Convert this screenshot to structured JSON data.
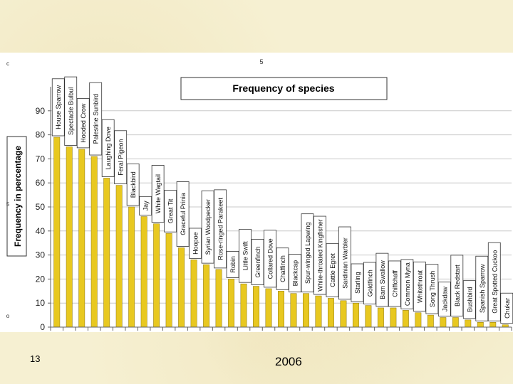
{
  "slide": {
    "number": "13",
    "year": "2006"
  },
  "colors": {
    "bar_fill": "#e8c820",
    "bar_stroke": "#8a7410",
    "gridline": "#c8c8c8",
    "axis": "#606060",
    "panel": "#ffffff"
  },
  "chart_data": {
    "type": "bar",
    "title": "Frequency of species",
    "xlabel": "",
    "ylabel": "Frequency in percentage",
    "ylim": [
      0,
      100
    ],
    "yticks": [
      0,
      10,
      20,
      30,
      40,
      50,
      60,
      70,
      80,
      90
    ],
    "grid": true,
    "categories": [
      "House Sparrow",
      "Spectacle Bulbul",
      "Hooded Crow",
      "Palestine Sunbird",
      "Laughing Dove",
      "Feral Pigeon",
      "Blackbird",
      "Jay",
      "White Wagtail",
      "Great Tit",
      "Graceful Prinia",
      "Hoopoe",
      "Syrian Woodpecker",
      "Rose-ringed Parakeet",
      "Robin",
      "Little Swift",
      "Greenfinch",
      "Collared Dove",
      "Chaffinch",
      "Blackcap",
      "Spur-winged Lapwing",
      "White-throated Kingfisher",
      "Cattle Egret",
      "Sardinian Warbler",
      "Starling",
      "Goldfinch",
      "Barn Swallow",
      "Chiffchaff",
      "Common Myna",
      "Whitethroat",
      "Song Thrush",
      "Jackdaw",
      "Black Redstart",
      "Bushbird",
      "Spanish Sparrow",
      "Great Spotted Cuckoo",
      "Chukar"
    ],
    "values": [
      79,
      75,
      74,
      71,
      62,
      59,
      50,
      46,
      43,
      39,
      33,
      28,
      26,
      24,
      20,
      18,
      17,
      16,
      15,
      14,
      14,
      13,
      12,
      11,
      10,
      9,
      8,
      8,
      7,
      6,
      5,
      4,
      4,
      3,
      2,
      2,
      1
    ],
    "edge_labels": {
      "top_mark": "5",
      "left_top": "c",
      "left_mid": "5",
      "left_bottom": "o"
    }
  }
}
